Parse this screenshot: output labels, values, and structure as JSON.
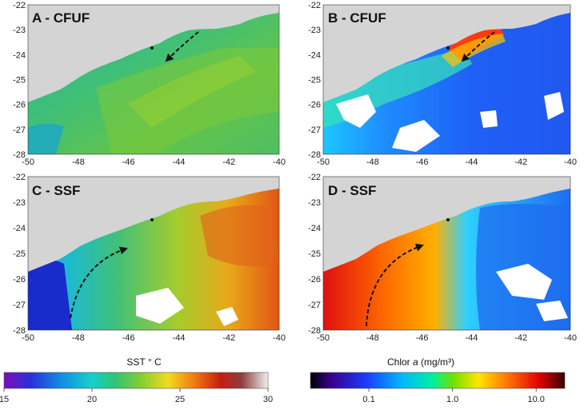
{
  "panels": [
    {
      "id": "A",
      "title": "A - CFUF",
      "variable": "sst"
    },
    {
      "id": "B",
      "title": "B - CFUF",
      "variable": "chlor"
    },
    {
      "id": "C",
      "title": "C - SSF",
      "variable": "sst"
    },
    {
      "id": "D",
      "title": "D - SSF",
      "variable": "chlor"
    }
  ],
  "axes": {
    "x_ticks": [
      "-50",
      "-48",
      "-46",
      "-44",
      "-42",
      "-40"
    ],
    "y_ticks": [
      "-22",
      "-23",
      "-24",
      "-25",
      "-26",
      "-27",
      "-28"
    ]
  },
  "colorbars": {
    "sst": {
      "label": "SST ° C",
      "ticks": [
        "15",
        "20",
        "25",
        "30"
      ],
      "min": 15,
      "max": 30
    },
    "chlor": {
      "label_prefix": "Chlor ",
      "label_italic": "a",
      "label_suffix": " (mg/m³)",
      "ticks": [
        "0.1",
        "1.0",
        "10.0"
      ],
      "scale": "log"
    }
  },
  "colors": {
    "land": "#d4d4d4",
    "cloud_mask": "#ffffff",
    "arrow": "#111111",
    "sst_palette": [
      "#7a0fb8",
      "#2b2fd6",
      "#1190e0",
      "#14d0cc",
      "#2fc476",
      "#86cc32",
      "#f0dd1d",
      "#f07c12",
      "#c41e12",
      "#8e3e3e",
      "#f0f0f0"
    ],
    "chlor_palette": [
      "#000000",
      "#3a008a",
      "#1a3cff",
      "#00b8ff",
      "#00f0a0",
      "#6ee000",
      "#ffe600",
      "#ff7000",
      "#e00000",
      "#3a0000"
    ]
  }
}
